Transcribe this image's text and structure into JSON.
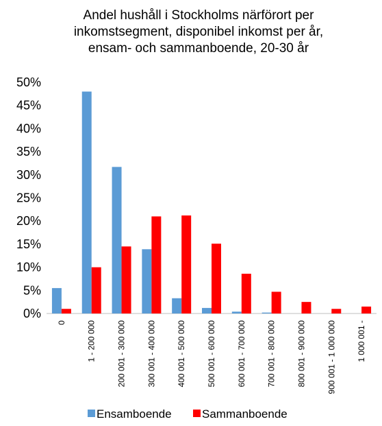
{
  "chart_data": {
    "type": "bar",
    "title": [
      "Andel hushåll i Stockholms närförort per",
      "inkomstsegment, disponibel inkomst per år,",
      "ensam- och sammanboende, 20-30 år"
    ],
    "categories": [
      "0",
      "1 - 200 000",
      "200 001 - 300 000",
      "300 001 - 400 000",
      "400 001 - 500 000",
      "500 001 - 600 000",
      "600 001 - 700 000",
      "700 001 - 800 000",
      "800 001 - 900 000",
      "900 001 - 1 000 000",
      "1 000 001 -"
    ],
    "series": [
      {
        "name": "Ensamboende",
        "color": "#5b9bd5",
        "values": [
          5.5,
          48,
          31.7,
          13.9,
          3.3,
          1.2,
          0.4,
          0.2,
          0,
          0,
          0
        ]
      },
      {
        "name": "Sammanboende",
        "color": "#ff0000",
        "values": [
          1.0,
          10,
          14.5,
          21,
          21.2,
          15.1,
          8.6,
          4.7,
          2.5,
          1.0,
          1.5
        ]
      }
    ],
    "ylim": [
      0,
      50
    ],
    "yticks": [
      {
        "value": 0,
        "label": "0%"
      },
      {
        "value": 5,
        "label": "5%"
      },
      {
        "value": 10,
        "label": "10%"
      },
      {
        "value": 15,
        "label": "15%"
      },
      {
        "value": 20,
        "label": "20%"
      },
      {
        "value": 25,
        "label": "25%"
      },
      {
        "value": 30,
        "label": "30%"
      },
      {
        "value": 35,
        "label": "35%"
      },
      {
        "value": 40,
        "label": "40%"
      },
      {
        "value": 45,
        "label": "45%"
      },
      {
        "value": 50,
        "label": "50%"
      }
    ],
    "legend": "bottom"
  }
}
